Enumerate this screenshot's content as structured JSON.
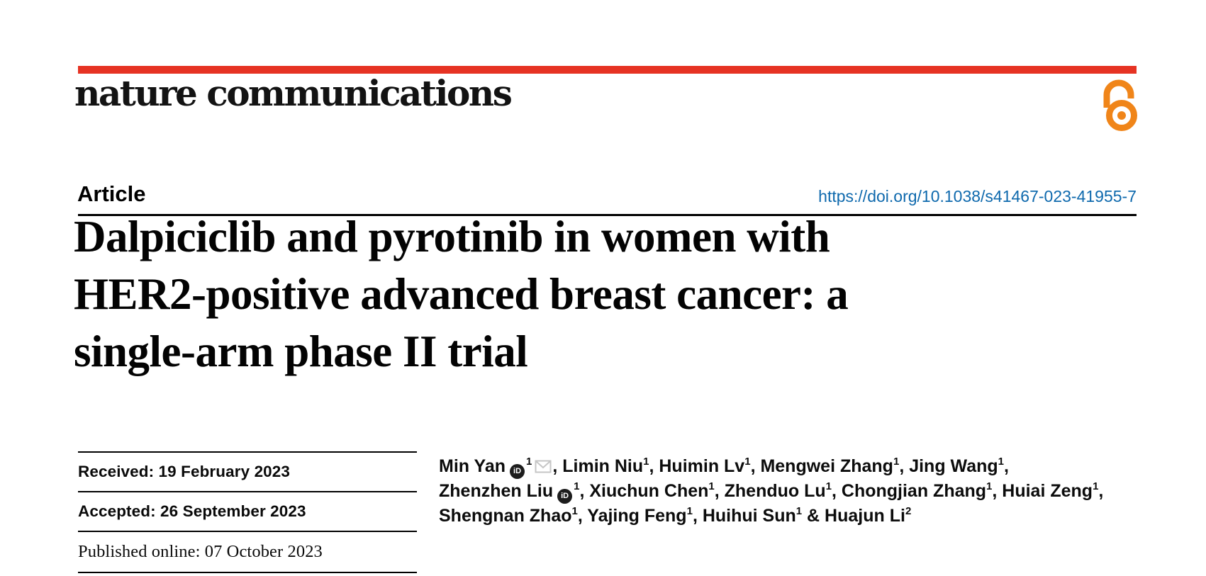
{
  "masthead": {
    "journal_wordmark": "nature communications",
    "brand_rule_color": "#e63323",
    "open_access_icon": "open-access-lock-icon",
    "open_access_color": "#f08519"
  },
  "article_bar": {
    "label": "Article",
    "doi": "https://doi.org/10.1038/s41467-023-41955-7",
    "doi_color": "#0e69ad"
  },
  "title": {
    "lines": [
      "Dalpiciclib and pyrotinib in women with",
      "HER2-positive advanced breast cancer: a",
      "single-arm phase II trial"
    ]
  },
  "history": {
    "rows": [
      {
        "text": "Received: 19 February 2023",
        "font": "sans"
      },
      {
        "text": "Accepted: 26 September 2023",
        "font": "sans"
      },
      {
        "text": "Published online: 07 October 2023",
        "font": "serif"
      }
    ]
  },
  "authors": {
    "orcid_glyph": "iD",
    "corresponding_icon": "envelope-icon",
    "lines": [
      {
        "segments": [
          {
            "t": "text",
            "v": "Min Yan"
          },
          {
            "t": "orcid",
            "icon": "orcid-icon"
          },
          {
            "t": "sup",
            "v": "1"
          },
          {
            "t": "mail",
            "icon": "envelope-icon"
          },
          {
            "t": "text",
            "v": ", Limin Niu"
          },
          {
            "t": "sup",
            "v": "1"
          },
          {
            "t": "text",
            "v": ", Huimin Lv"
          },
          {
            "t": "sup",
            "v": "1"
          },
          {
            "t": "text",
            "v": ", Mengwei Zhang"
          },
          {
            "t": "sup",
            "v": "1"
          },
          {
            "t": "text",
            "v": ", Jing Wang"
          },
          {
            "t": "sup",
            "v": "1"
          },
          {
            "t": "text",
            "v": ","
          }
        ]
      },
      {
        "segments": [
          {
            "t": "text",
            "v": "Zhenzhen Liu"
          },
          {
            "t": "orcid",
            "icon": "orcid-icon"
          },
          {
            "t": "sup",
            "v": "1"
          },
          {
            "t": "text",
            "v": ", Xiuchun Chen"
          },
          {
            "t": "sup",
            "v": "1"
          },
          {
            "t": "text",
            "v": ", Zhenduo Lu"
          },
          {
            "t": "sup",
            "v": "1"
          },
          {
            "t": "text",
            "v": ", Chongjian Zhang"
          },
          {
            "t": "sup",
            "v": "1"
          },
          {
            "t": "text",
            "v": ", Huiai Zeng"
          },
          {
            "t": "sup",
            "v": "1"
          },
          {
            "t": "text",
            "v": ","
          }
        ]
      },
      {
        "segments": [
          {
            "t": "text",
            "v": "Shengnan Zhao"
          },
          {
            "t": "sup",
            "v": "1"
          },
          {
            "t": "text",
            "v": ", Yajing Feng"
          },
          {
            "t": "sup",
            "v": "1"
          },
          {
            "t": "text",
            "v": ", Huihui Sun"
          },
          {
            "t": "sup",
            "v": "1"
          },
          {
            "t": "text",
            "v": " & Huajun Li"
          },
          {
            "t": "sup",
            "v": "2"
          }
        ]
      }
    ]
  }
}
